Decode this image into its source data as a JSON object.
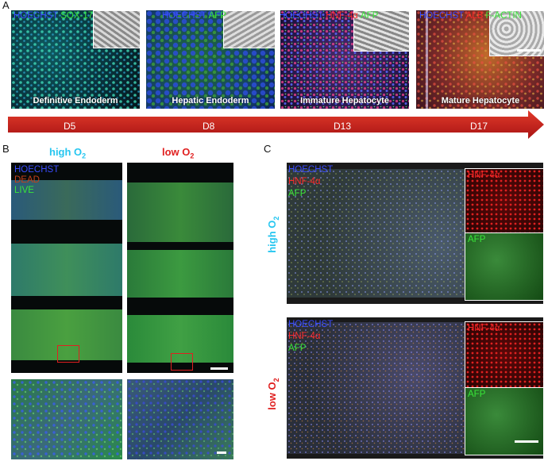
{
  "panel_letters": {
    "a": "A",
    "b": "B",
    "c": "C"
  },
  "panel_a": {
    "tiles": [
      {
        "stage": "Definitive Endoderm",
        "stains": [
          {
            "text": "HOECHST",
            "color": "blue"
          },
          {
            "text": "SOX-17",
            "color": "green"
          }
        ]
      },
      {
        "stage": "Hepatic Endoderm",
        "stains": [
          {
            "text": "HOECHST",
            "color": "blue"
          },
          {
            "text": "AFP",
            "color": "green"
          }
        ]
      },
      {
        "stage": "Immature Hepatocyte",
        "stains": [
          {
            "text": "HOECHST",
            "color": "blue"
          },
          {
            "text": "HNF-4α",
            "color": "red"
          },
          {
            "text": "AFP",
            "color": "green"
          }
        ]
      },
      {
        "stage": "Mature Hepatocyte",
        "stains": [
          {
            "text": "HOECHST",
            "color": "blue"
          },
          {
            "text": "ALB",
            "color": "red"
          },
          {
            "text": "F-ACTIN",
            "color": "green"
          }
        ]
      }
    ],
    "timeline": [
      "D5",
      "D8",
      "D13",
      "D17"
    ],
    "arrow_color": "#cc1b1b"
  },
  "panel_b": {
    "high_title": "high O",
    "high_sub": "2",
    "low_title": "low O",
    "low_sub": "2",
    "legend": {
      "hoechst": "HOECHST",
      "dead": "DEAD",
      "live": "LIVE"
    }
  },
  "panel_c": {
    "high_label": "high O",
    "high_sub": "2",
    "low_label": "low O",
    "low_sub": "2",
    "main_legend": {
      "hoechst": "HOECHST",
      "hnf": "HNF-4α",
      "afp": "AFP"
    },
    "inset_hnf": "HNF-4α",
    "inset_afp": "AFP"
  },
  "colors": {
    "high_o2": "#26c6f0",
    "low_o2": "#e02020"
  }
}
